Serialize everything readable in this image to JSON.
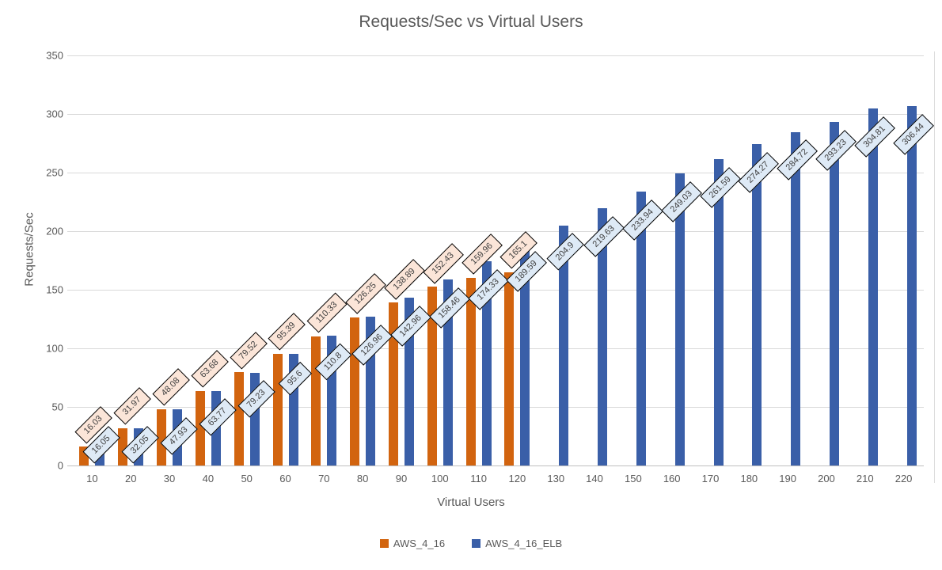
{
  "chart_data": {
    "type": "bar",
    "title": "Requests/Sec vs Virtual Users",
    "xlabel": "Virtual Users",
    "ylabel": "Requests/Sec",
    "ylim": [
      0,
      350
    ],
    "ytick_step": 50,
    "grid": true,
    "legend_position": "bottom",
    "categories": [
      10,
      20,
      30,
      40,
      50,
      60,
      70,
      80,
      90,
      100,
      110,
      120,
      130,
      140,
      150,
      160,
      170,
      180,
      190,
      200,
      210,
      220
    ],
    "series": [
      {
        "name": "AWS_4_16",
        "color": "#D2640F",
        "label_fill": "#FBE5D8",
        "values": [
          16.03,
          31.97,
          48.08,
          63.68,
          79.52,
          95.39,
          110.33,
          126.25,
          138.89,
          152.43,
          159.96,
          165.1
        ]
      },
      {
        "name": "AWS_4_16_ELB",
        "color": "#3A5FA8",
        "label_fill": "#DEEAF6",
        "values": [
          16.05,
          32.05,
          47.93,
          63.77,
          79.23,
          95.6,
          110.8,
          126.96,
          142.96,
          158.46,
          174.33,
          189.59,
          204.9,
          219.63,
          233.94,
          249.03,
          261.59,
          274.27,
          284.72,
          293.23,
          304.81,
          306.44
        ]
      }
    ]
  },
  "colors": {
    "background": "#FFFFFF",
    "grid": "#D9D9D9",
    "axis_line": "#BFBFBF",
    "tick_text": "#595959",
    "title_text": "#595959",
    "data_label_text": "#404040",
    "data_label_border": "#000000"
  }
}
